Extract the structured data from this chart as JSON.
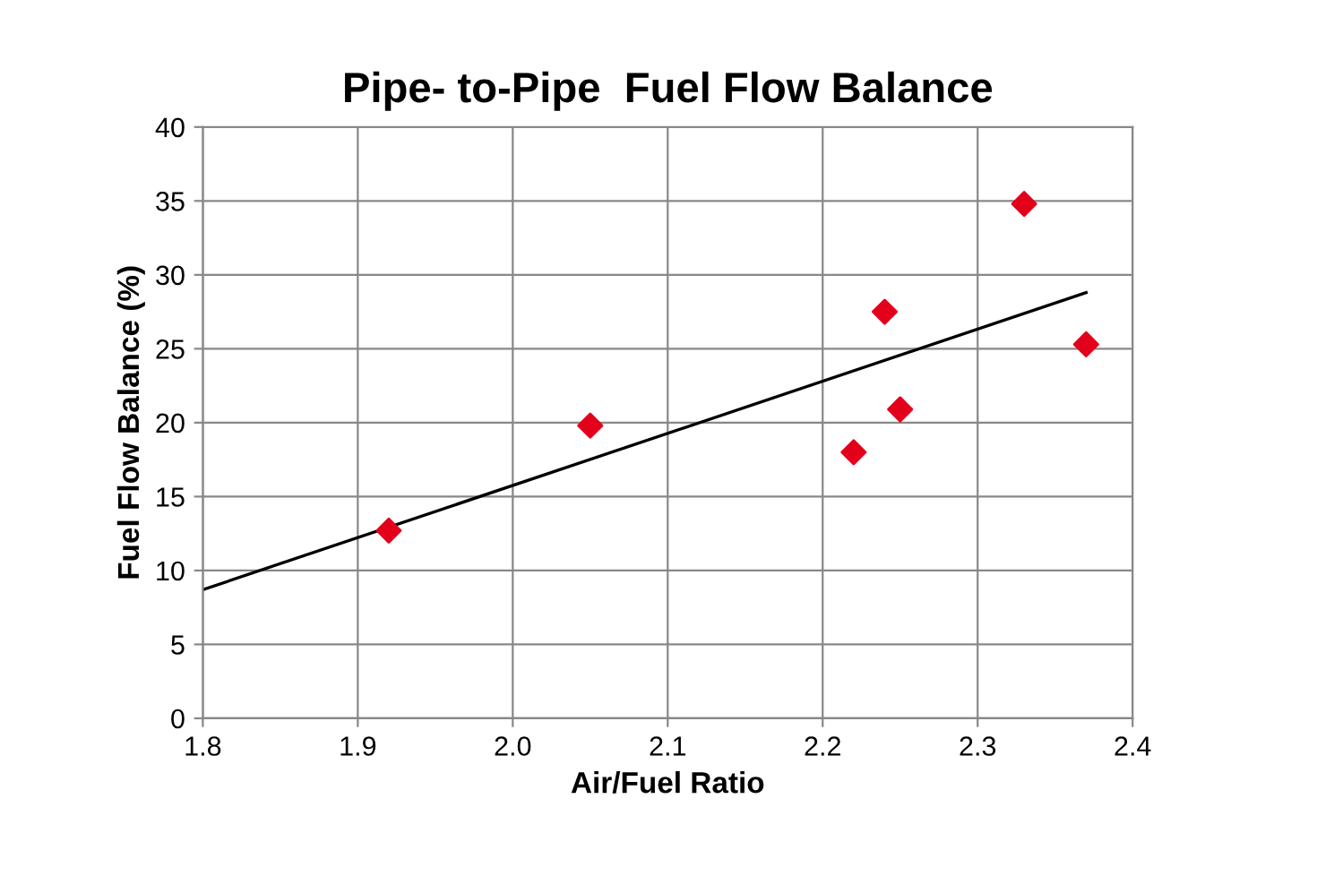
{
  "chart_data": {
    "type": "scatter",
    "title": "Pipe- to-Pipe  Fuel Flow Balance",
    "xlabel": "Air/Fuel Ratio",
    "ylabel": "Fuel Flow Balance (%)",
    "xlim": [
      1.8,
      2.4
    ],
    "xticks": [
      {
        "value": 1.8,
        "label": "1.8"
      },
      {
        "value": 1.9,
        "label": "1.9"
      },
      {
        "value": 2.0,
        "label": "2.0"
      },
      {
        "value": 2.1,
        "label": "2.1"
      },
      {
        "value": 2.2,
        "label": "2.2"
      },
      {
        "value": 2.3,
        "label": "2.3"
      },
      {
        "value": 2.4,
        "label": "2.4"
      }
    ],
    "ylim": [
      0,
      40
    ],
    "yticks": [
      0,
      5,
      10,
      15,
      20,
      25,
      30,
      35,
      40
    ],
    "grid": true,
    "legend": false,
    "series": [
      {
        "color": "#e3001b",
        "marker": "diamond",
        "x": [
          1.92,
          2.05,
          2.22,
          2.24,
          2.25,
          2.33,
          2.37
        ],
        "values": [
          12.7,
          19.8,
          18.0,
          27.5,
          20.9,
          34.8,
          25.3
        ]
      },
      {
        "type": "line",
        "color": "#000000",
        "marker": "none",
        "line_style": "solid",
        "x": [
          1.8,
          2.37
        ],
        "values": [
          8.7,
          28.8
        ]
      }
    ]
  }
}
